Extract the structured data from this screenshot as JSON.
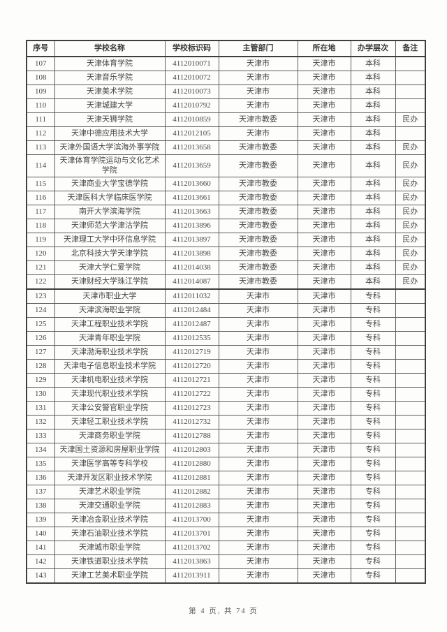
{
  "table": {
    "columns": [
      {
        "key": "seq",
        "label": "序号"
      },
      {
        "key": "name",
        "label": "学校名称"
      },
      {
        "key": "code",
        "label": "学校标识码"
      },
      {
        "key": "dept",
        "label": "主管部门"
      },
      {
        "key": "loc",
        "label": "所在地"
      },
      {
        "key": "level",
        "label": "办学层次"
      },
      {
        "key": "remark",
        "label": "备注"
      }
    ],
    "rows": [
      {
        "seq": "107",
        "name": "天津体育学院",
        "code": "4112010071",
        "dept": "天津市",
        "loc": "天津市",
        "level": "本科",
        "remark": ""
      },
      {
        "seq": "108",
        "name": "天津音乐学院",
        "code": "4112010072",
        "dept": "天津市",
        "loc": "天津市",
        "level": "本科",
        "remark": ""
      },
      {
        "seq": "109",
        "name": "天津美术学院",
        "code": "4112010073",
        "dept": "天津市",
        "loc": "天津市",
        "level": "本科",
        "remark": ""
      },
      {
        "seq": "110",
        "name": "天津城建大学",
        "code": "4112010792",
        "dept": "天津市",
        "loc": "天津市",
        "level": "本科",
        "remark": ""
      },
      {
        "seq": "111",
        "name": "天津天狮学院",
        "code": "4112010859",
        "dept": "天津市教委",
        "loc": "天津市",
        "level": "本科",
        "remark": "民办"
      },
      {
        "seq": "112",
        "name": "天津中德应用技术大学",
        "code": "4112012105",
        "dept": "天津市",
        "loc": "天津市",
        "level": "本科",
        "remark": ""
      },
      {
        "seq": "113",
        "name": "天津外国语大学滨海外事学院",
        "code": "4112013658",
        "dept": "天津市教委",
        "loc": "天津市",
        "level": "本科",
        "remark": "民办"
      },
      {
        "seq": "114",
        "name": "天津体育学院运动与文化艺术学院",
        "code": "4112013659",
        "dept": "天津市教委",
        "loc": "天津市",
        "level": "本科",
        "remark": "民办"
      },
      {
        "seq": "115",
        "name": "天津商业大学宝德学院",
        "code": "4112013660",
        "dept": "天津市教委",
        "loc": "天津市",
        "level": "本科",
        "remark": "民办"
      },
      {
        "seq": "116",
        "name": "天津医科大学临床医学院",
        "code": "4112013661",
        "dept": "天津市教委",
        "loc": "天津市",
        "level": "本科",
        "remark": "民办"
      },
      {
        "seq": "117",
        "name": "南开大学滨海学院",
        "code": "4112013663",
        "dept": "天津市教委",
        "loc": "天津市",
        "level": "本科",
        "remark": "民办"
      },
      {
        "seq": "118",
        "name": "天津师范大学津沽学院",
        "code": "4112013896",
        "dept": "天津市教委",
        "loc": "天津市",
        "level": "本科",
        "remark": "民办"
      },
      {
        "seq": "119",
        "name": "天津理工大学中环信息学院",
        "code": "4112013897",
        "dept": "天津市教委",
        "loc": "天津市",
        "level": "本科",
        "remark": "民办"
      },
      {
        "seq": "120",
        "name": "北京科技大学天津学院",
        "code": "4112013898",
        "dept": "天津市教委",
        "loc": "天津市",
        "level": "本科",
        "remark": "民办"
      },
      {
        "seq": "121",
        "name": "天津大学仁爱学院",
        "code": "4112014038",
        "dept": "天津市教委",
        "loc": "天津市",
        "level": "本科",
        "remark": "民办"
      },
      {
        "seq": "122",
        "name": "天津财经大学珠江学院",
        "code": "4112014087",
        "dept": "天津市教委",
        "loc": "天津市",
        "level": "本科",
        "remark": "民办"
      },
      {
        "seq": "123",
        "name": "天津市职业大学",
        "code": "4112011032",
        "dept": "天津市",
        "loc": "天津市",
        "level": "专科",
        "remark": ""
      },
      {
        "seq": "124",
        "name": "天津滨海职业学院",
        "code": "4112012484",
        "dept": "天津市",
        "loc": "天津市",
        "level": "专科",
        "remark": ""
      },
      {
        "seq": "125",
        "name": "天津工程职业技术学院",
        "code": "4112012487",
        "dept": "天津市",
        "loc": "天津市",
        "level": "专科",
        "remark": ""
      },
      {
        "seq": "126",
        "name": "天津青年职业学院",
        "code": "4112012535",
        "dept": "天津市",
        "loc": "天津市",
        "level": "专科",
        "remark": ""
      },
      {
        "seq": "127",
        "name": "天津渤海职业技术学院",
        "code": "4112012719",
        "dept": "天津市",
        "loc": "天津市",
        "level": "专科",
        "remark": ""
      },
      {
        "seq": "128",
        "name": "天津电子信息职业技术学院",
        "code": "4112012720",
        "dept": "天津市",
        "loc": "天津市",
        "level": "专科",
        "remark": ""
      },
      {
        "seq": "129",
        "name": "天津机电职业技术学院",
        "code": "4112012721",
        "dept": "天津市",
        "loc": "天津市",
        "level": "专科",
        "remark": ""
      },
      {
        "seq": "130",
        "name": "天津现代职业技术学院",
        "code": "4112012722",
        "dept": "天津市",
        "loc": "天津市",
        "level": "专科",
        "remark": ""
      },
      {
        "seq": "131",
        "name": "天津公安警官职业学院",
        "code": "4112012723",
        "dept": "天津市",
        "loc": "天津市",
        "level": "专科",
        "remark": ""
      },
      {
        "seq": "132",
        "name": "天津轻工职业技术学院",
        "code": "4112012732",
        "dept": "天津市",
        "loc": "天津市",
        "level": "专科",
        "remark": ""
      },
      {
        "seq": "133",
        "name": "天津商务职业学院",
        "code": "4112012788",
        "dept": "天津市",
        "loc": "天津市",
        "level": "专科",
        "remark": ""
      },
      {
        "seq": "134",
        "name": "天津国土资源和房屋职业学院",
        "code": "4112012803",
        "dept": "天津市",
        "loc": "天津市",
        "level": "专科",
        "remark": ""
      },
      {
        "seq": "135",
        "name": "天津医学高等专科学校",
        "code": "4112012880",
        "dept": "天津市",
        "loc": "天津市",
        "level": "专科",
        "remark": ""
      },
      {
        "seq": "136",
        "name": "天津开发区职业技术学院",
        "code": "4112012881",
        "dept": "天津市",
        "loc": "天津市",
        "level": "专科",
        "remark": ""
      },
      {
        "seq": "137",
        "name": "天津艺术职业学院",
        "code": "4112012882",
        "dept": "天津市",
        "loc": "天津市",
        "level": "专科",
        "remark": ""
      },
      {
        "seq": "138",
        "name": "天津交通职业学院",
        "code": "4112012883",
        "dept": "天津市",
        "loc": "天津市",
        "level": "专科",
        "remark": ""
      },
      {
        "seq": "139",
        "name": "天津冶金职业技术学院",
        "code": "4112013700",
        "dept": "天津市",
        "loc": "天津市",
        "level": "专科",
        "remark": ""
      },
      {
        "seq": "140",
        "name": "天津石油职业技术学院",
        "code": "4112013701",
        "dept": "天津市",
        "loc": "天津市",
        "level": "专科",
        "remark": ""
      },
      {
        "seq": "141",
        "name": "天津城市职业学院",
        "code": "4112013702",
        "dept": "天津市",
        "loc": "天津市",
        "level": "专科",
        "remark": ""
      },
      {
        "seq": "142",
        "name": "天津铁道职业技术学院",
        "code": "4112013863",
        "dept": "天津市",
        "loc": "天津市",
        "level": "专科",
        "remark": ""
      },
      {
        "seq": "143",
        "name": "天津工艺美术职业学院",
        "code": "4112013911",
        "dept": "天津市",
        "loc": "天津市",
        "level": "专科",
        "remark": ""
      }
    ]
  },
  "footer": {
    "page_text": "第 4 页, 共 74 页"
  },
  "colors": {
    "background": "#fdfdfc",
    "text": "#474747",
    "border_thin": "#5c5c5c",
    "border_thick": "#3e3e3e"
  }
}
